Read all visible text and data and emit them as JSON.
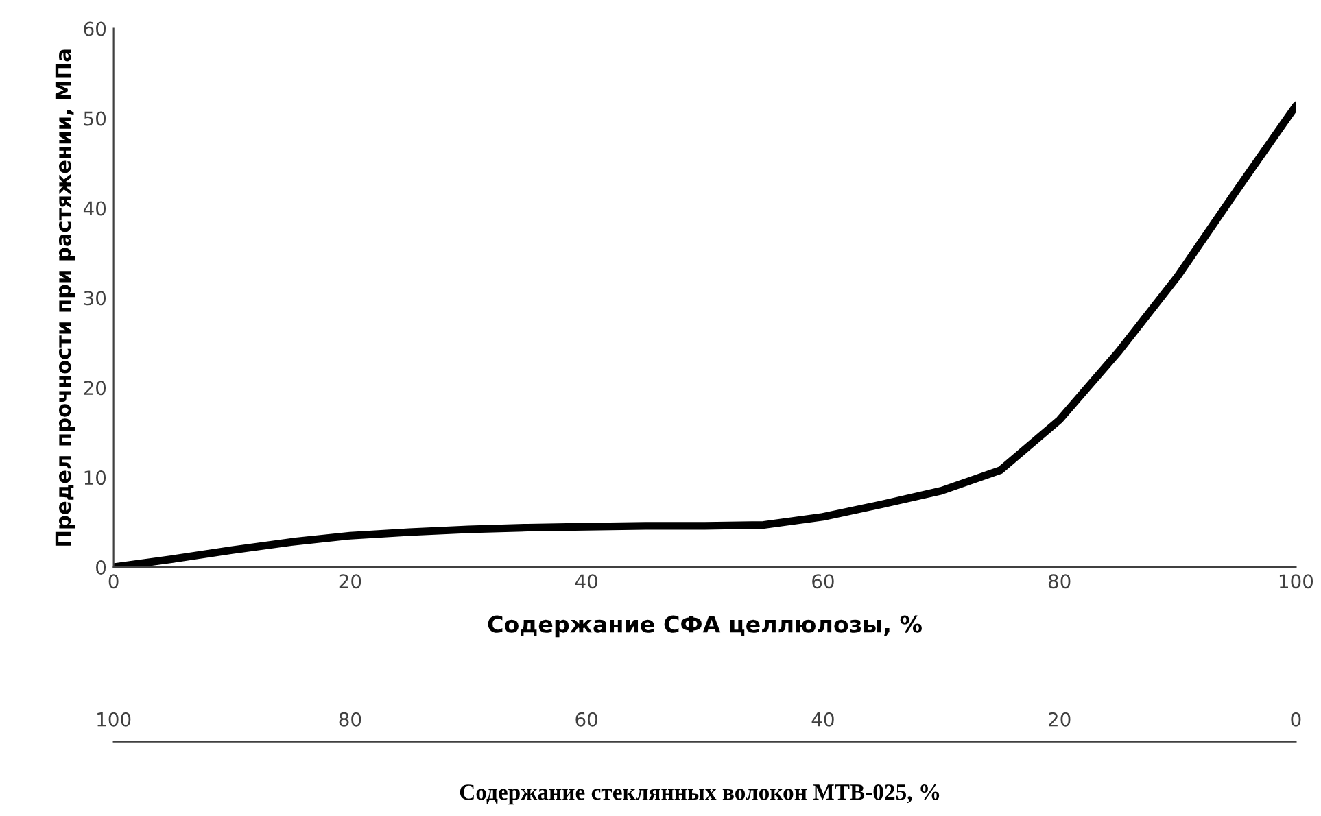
{
  "chart_data": {
    "type": "line",
    "xlabel": "Содержание СФА целлюлозы, %",
    "ylabel": "Предел прочности при растяжении, МПа",
    "x2label": "Содержание стеклянных волокон МТВ-025, %",
    "x": [
      0,
      5,
      10,
      15,
      20,
      25,
      30,
      35,
      40,
      45,
      50,
      55,
      60,
      65,
      70,
      75,
      80,
      85,
      90,
      95,
      100
    ],
    "series": [
      {
        "color": "#000000",
        "values": [
          0,
          0.9,
          1.9,
          2.8,
          3.5,
          3.9,
          4.2,
          4.4,
          4.5,
          4.6,
          4.6,
          4.7,
          5.6,
          7,
          8.5,
          10.8,
          16.4,
          24,
          32.4,
          42,
          51.4
        ]
      }
    ],
    "xlim": [
      0,
      100
    ],
    "xticks": [
      0,
      20,
      40,
      60,
      80,
      100
    ],
    "ylim": [
      0,
      60
    ],
    "yticks": [
      0,
      10,
      20,
      30,
      40,
      50,
      60
    ],
    "x2lim": [
      100,
      0
    ],
    "x2ticks": [
      100,
      80,
      60,
      40,
      20,
      0
    ],
    "grid": false,
    "legend": false,
    "marker": "none",
    "line_style": "solid"
  }
}
